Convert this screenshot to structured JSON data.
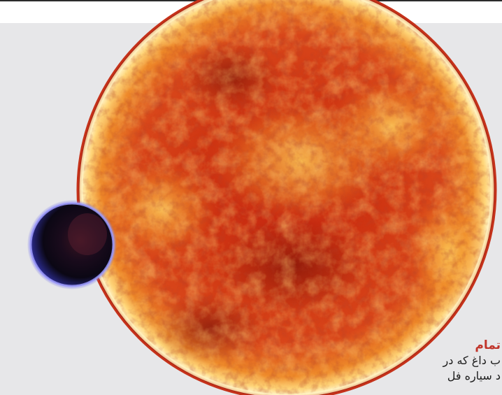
{
  "figure": {
    "subject": "red-star-with-transiting-planet",
    "colors": {
      "background_panel": "#e7e7e9",
      "top_rule": "#2b2b2b",
      "star_core": "#b0200f",
      "star_limb": "#ffe48a",
      "planet_dark": "#0b0714",
      "planet_rim": "#7b7ff0",
      "caption_title": "#c0352b"
    }
  },
  "caption": {
    "title": "تمام",
    "line_1": "ب داغ که در",
    "line_2": "د سیاره فل"
  }
}
